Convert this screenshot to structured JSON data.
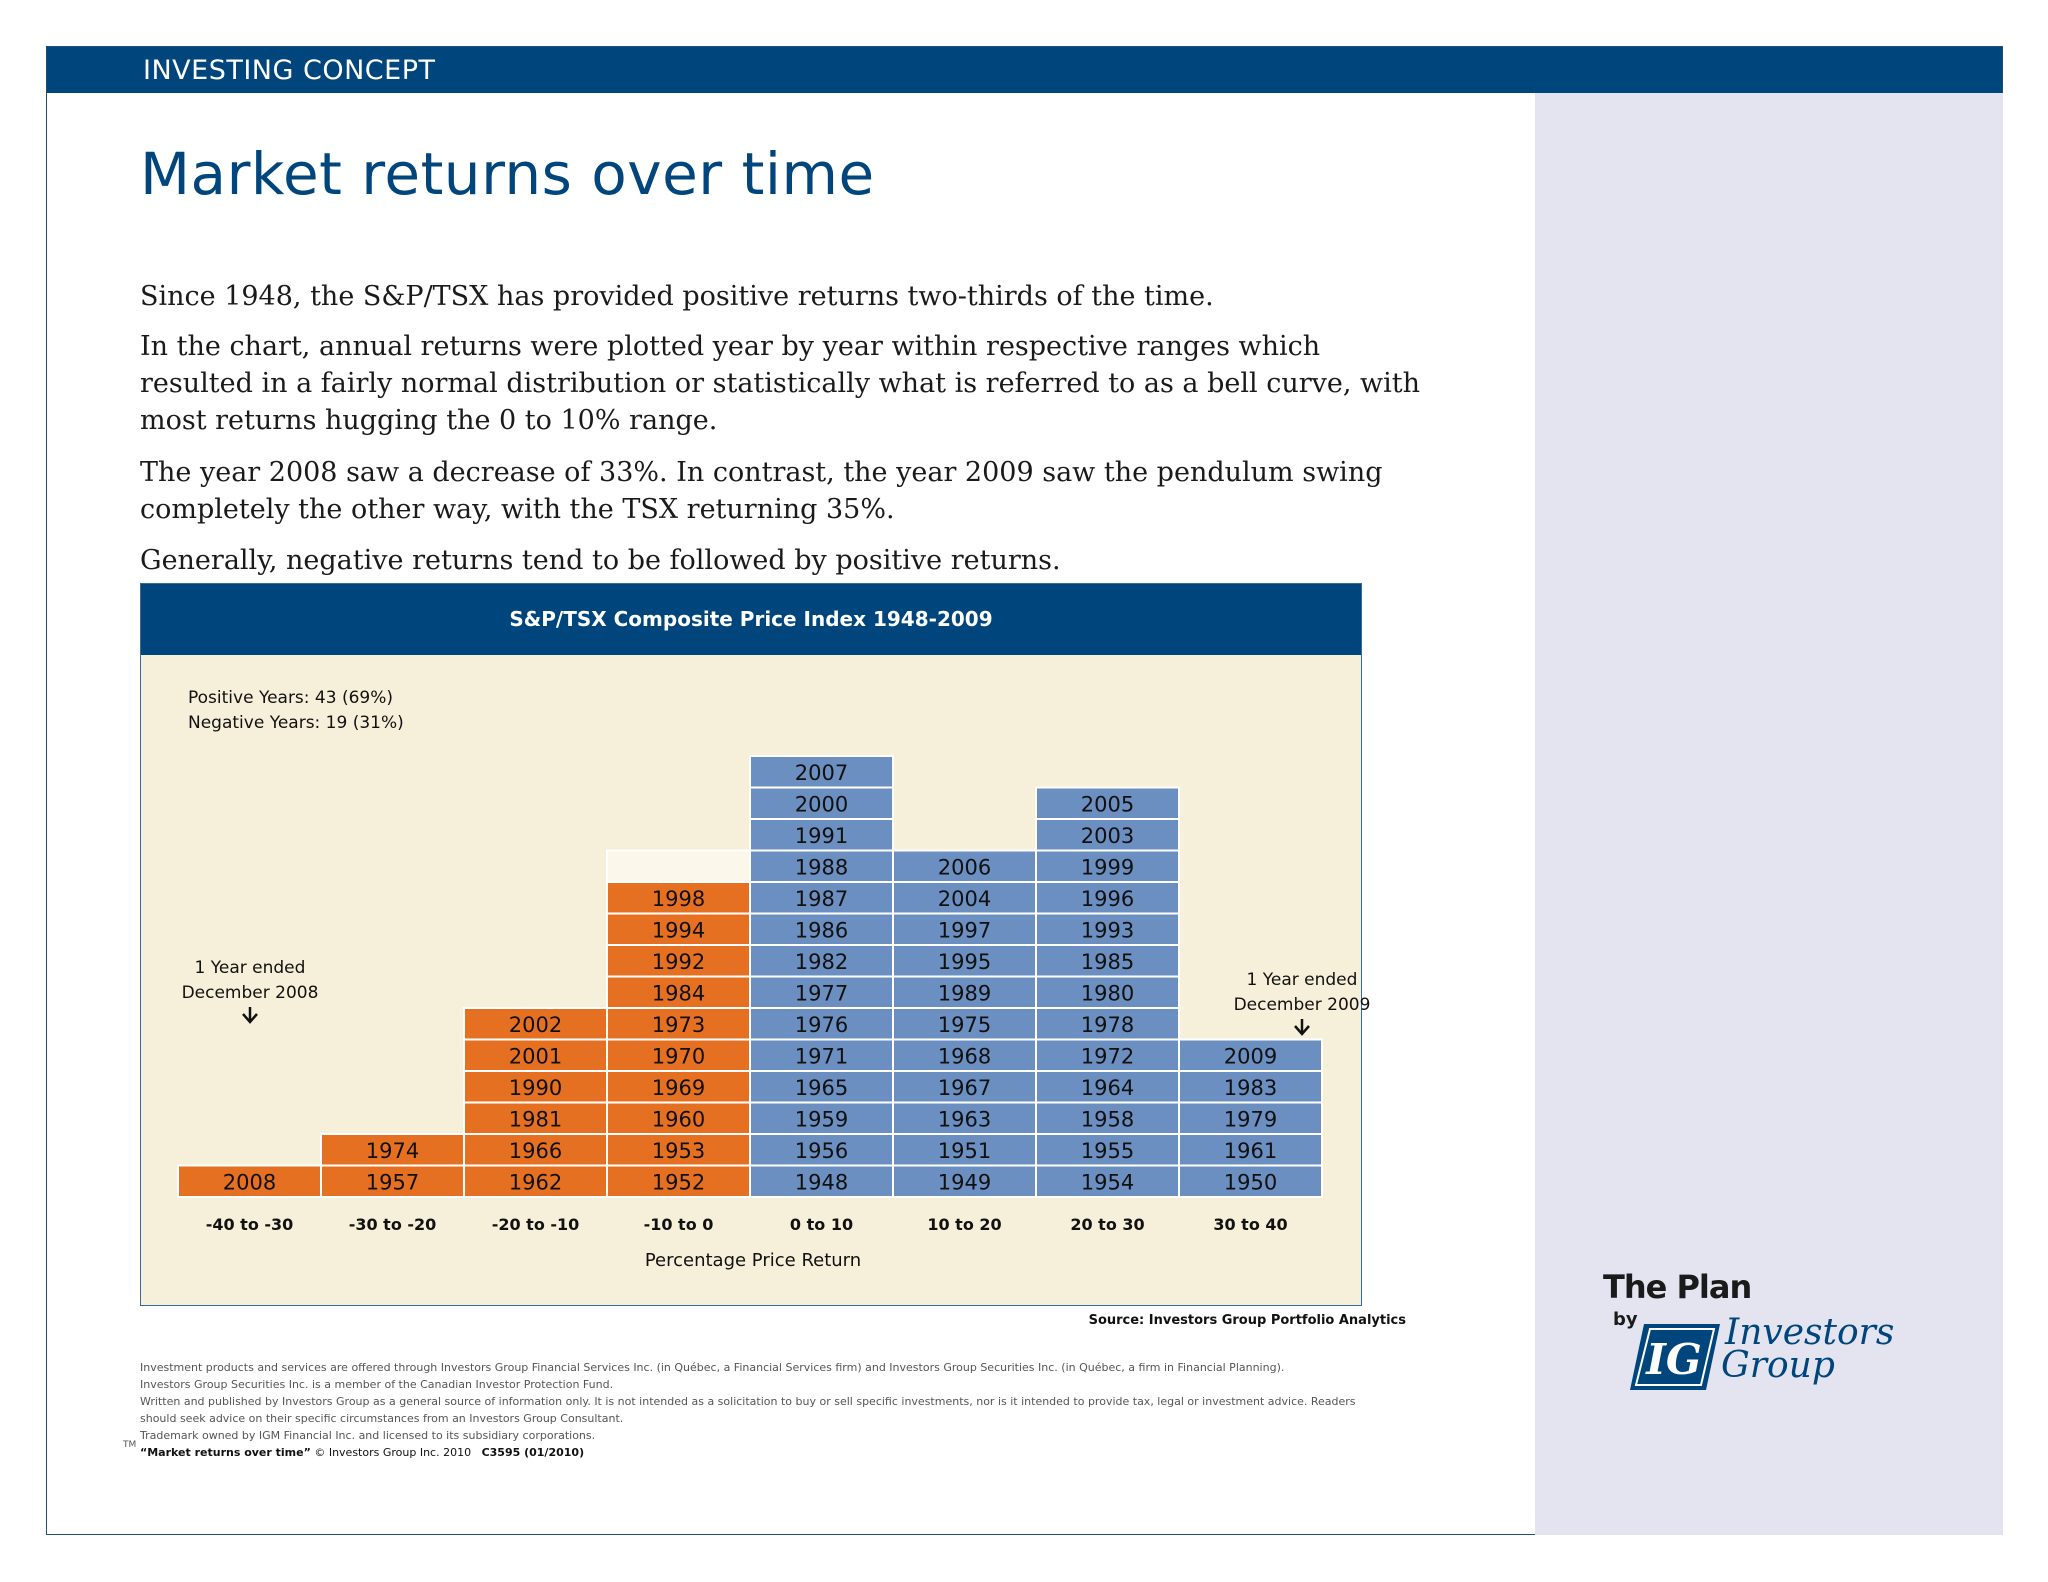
{
  "header": {
    "label": "INVESTING CONCEPT"
  },
  "title": "Market returns over time",
  "paragraphs": [
    "Since 1948, the S&P/TSX has provided positive returns two-thirds of the time.",
    "In the chart, annual returns were plotted year by year within respective ranges which resulted in a fairly normal distribution or statistically what is referred to as a bell curve, with most returns hugging the 0 to 10% range.",
    "The year 2008 saw a decrease of 33%. In contrast, the year 2009 saw the pendulum swing completely the other way, with the TSX returning 35%.",
    "Generally, negative returns tend to be followed by positive returns."
  ],
  "chart_data": {
    "type": "table",
    "title": "S&P/TSX Composite Price Index 1948-2009",
    "xlabel": "Percentage Price Return",
    "categories": [
      "-40 to -30",
      "-30 to -20",
      "-20 to -10",
      "-10 to 0",
      "0 to 10",
      "10 to 20",
      "20 to 30",
      "30 to 40"
    ],
    "bins": [
      {
        "category": "-40 to -30",
        "sign": "negative",
        "years": [
          "2008"
        ]
      },
      {
        "category": "-30 to -20",
        "sign": "negative",
        "years": [
          "1957",
          "1974"
        ]
      },
      {
        "category": "-20 to -10",
        "sign": "negative",
        "years": [
          "1962",
          "1966",
          "1981",
          "1990",
          "2001",
          "2002"
        ]
      },
      {
        "category": "-10 to 0",
        "sign": "negative",
        "years": [
          "1952",
          "1953",
          "1960",
          "1969",
          "1970",
          "1973",
          "1984",
          "1992",
          "1994",
          "1998"
        ]
      },
      {
        "category": "0 to 10",
        "sign": "positive",
        "years": [
          "1948",
          "1956",
          "1959",
          "1965",
          "1971",
          "1976",
          "1977",
          "1982",
          "1986",
          "1987",
          "1988",
          "1991",
          "2000",
          "2007"
        ]
      },
      {
        "category": "10 to 20",
        "sign": "positive",
        "years": [
          "1949",
          "1951",
          "1963",
          "1967",
          "1968",
          "1975",
          "1989",
          "1995",
          "1997",
          "2004",
          "2006"
        ]
      },
      {
        "category": "20 to 30",
        "sign": "positive",
        "years": [
          "1954",
          "1955",
          "1958",
          "1964",
          "1972",
          "1978",
          "1980",
          "1985",
          "1993",
          "1996",
          "1999",
          "2003",
          "2005"
        ]
      },
      {
        "category": "30 to 40",
        "sign": "positive",
        "years": [
          "1950",
          "1961",
          "1979",
          "1983",
          "2009"
        ]
      }
    ],
    "colors": {
      "negative": "#e57022",
      "positive": "#6c8fc1",
      "background": "#f6efd9",
      "header": "#00457c"
    },
    "stats": {
      "positive": "Positive Years:  43  (69%)",
      "negative": "Negative Years: 19  (31%)"
    },
    "annotations": [
      {
        "target": "2008",
        "line1": "1 Year ended",
        "line2": "December 2008"
      },
      {
        "target": "2009",
        "line1": "1 Year ended",
        "line2": "December 2009"
      }
    ]
  },
  "source": "Source: Investors Group Portfolio Analytics",
  "footer": {
    "lines": [
      "Investment products and services are offered through Investors Group Financial Services Inc. (in Québec, a Financial Services firm) and Investors Group Securities Inc. (in Québec, a firm in Financial Planning).",
      "Investors Group Securities Inc. is a member of the Canadian Investor Protection Fund.",
      "Written and published by Investors Group as a general source of information only. It is not intended as a solicitation to buy or sell specific investments, nor is it intended to provide tax, legal or investment advice. Readers should seek advice on their specific circumstances from an Investors Group Consultant.",
      "Trademark owned by IGM Financial Inc. and licensed to its subsidiary corporations."
    ],
    "tm": "TM",
    "copyright_title": "“Market returns over time”",
    "copyright": "© Investors Group Inc. 2010",
    "code": "C3595 (01/2010)"
  },
  "logo": {
    "plan": "The Plan",
    "by": "by",
    "mark": "IG",
    "name_line1": "Investors",
    "name_line2": "Group"
  }
}
